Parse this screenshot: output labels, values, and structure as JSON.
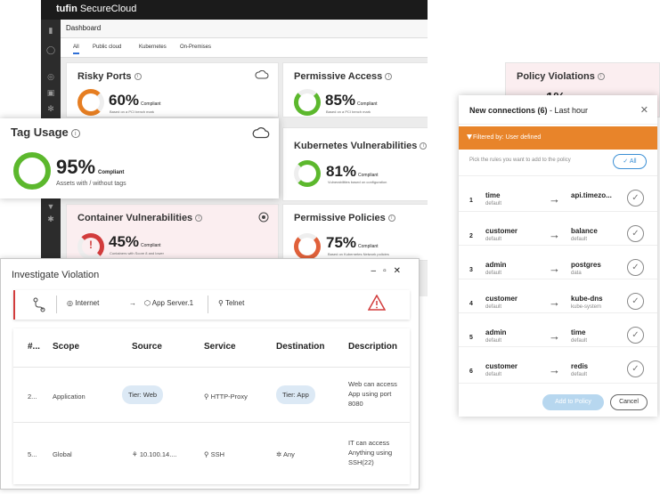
{
  "brand": {
    "logo": "tufin",
    "product": "SecureCloud"
  },
  "dashboard": {
    "crumb": "Dashboard",
    "filters": [
      "All",
      "Public cloud",
      "Kubernetes",
      "On-Premises"
    ],
    "cards": {
      "risky_ports": {
        "title": "Risky Ports",
        "pct": "60%",
        "compliant": "Compliant",
        "sub": "Based on a PCI bench mark"
      },
      "permissive_access": {
        "title": "Permissive Access",
        "pct": "85%",
        "compliant": "Compliant",
        "sub": "Based on a PCI bench mark"
      },
      "policy_violations": {
        "title": "Policy Violations",
        "pct": "1%"
      },
      "kubernetes_vulnerabilities": {
        "title": "Kubernetes Vulnerabilities",
        "pct": "81%",
        "compliant": "Compliant",
        "sub": "Vulnerabilities based on configuration"
      },
      "container_vulnerabilities": {
        "title": "Container Vulnerabilities",
        "pct": "45%",
        "compliant": "Compliant",
        "sub": "Containers with Score 8 and lower"
      },
      "permissive_policies": {
        "title": "Permissive Policies",
        "pct": "75%",
        "compliant": "Compliant",
        "sub": "Based on Kubernetes Network policies"
      }
    }
  },
  "tag_usage": {
    "title": "Tag Usage",
    "pct": "95%",
    "compliant": "Compliant",
    "sub": "Assets with / without tags"
  },
  "connections": {
    "title_bold": "New connections (6)",
    "title_rest": " - Last hour",
    "filter": "Filtered by: User defined",
    "pick_text": "Pick the rules you want to add to the policy",
    "all_label": "✓ All",
    "rows": [
      {
        "num": "1",
        "src": "time",
        "src_sub": "default",
        "dst": "api.timezo...",
        "dst_sub": ""
      },
      {
        "num": "2",
        "src": "customer",
        "src_sub": "default",
        "dst": "balance",
        "dst_sub": "default"
      },
      {
        "num": "3",
        "src": "admin",
        "src_sub": "default",
        "dst": "postgres",
        "dst_sub": "data"
      },
      {
        "num": "4",
        "src": "customer",
        "src_sub": "default",
        "dst": "kube-dns",
        "dst_sub": "kube-system"
      },
      {
        "num": "5",
        "src": "admin",
        "src_sub": "default",
        "dst": "time",
        "dst_sub": "default"
      },
      {
        "num": "6",
        "src": "customer",
        "src_sub": "default",
        "dst": "redis",
        "dst_sub": "default"
      }
    ],
    "add_label": "Add to Policy",
    "cancel_label": "Cancel"
  },
  "investigate": {
    "title": "Investigate Violation",
    "path": {
      "source": "Internet",
      "target": "App Server.1",
      "service": "Telnet"
    },
    "columns": [
      "#...",
      "Scope",
      "Source",
      "Service",
      "Destination",
      "Description"
    ],
    "rows": [
      {
        "num": "2...",
        "scope": "Application",
        "source": "Tier: Web",
        "service": "HTTP-Proxy",
        "destination": "Tier: App",
        "desc": [
          "Web can access",
          "App using port",
          "8080"
        ]
      },
      {
        "num": "5...",
        "scope": "Global",
        "source": "10.100.14....",
        "service": "SSH",
        "destination": "Any",
        "desc": [
          "IT can access",
          "Anything using",
          "SSH(22)"
        ]
      }
    ]
  },
  "colors": {
    "accent_blue": "#2f6fd6",
    "orange": "#e8842a",
    "green": "#5cb82d",
    "red": "#d23c3c",
    "pink_card": "#fbeef0"
  }
}
